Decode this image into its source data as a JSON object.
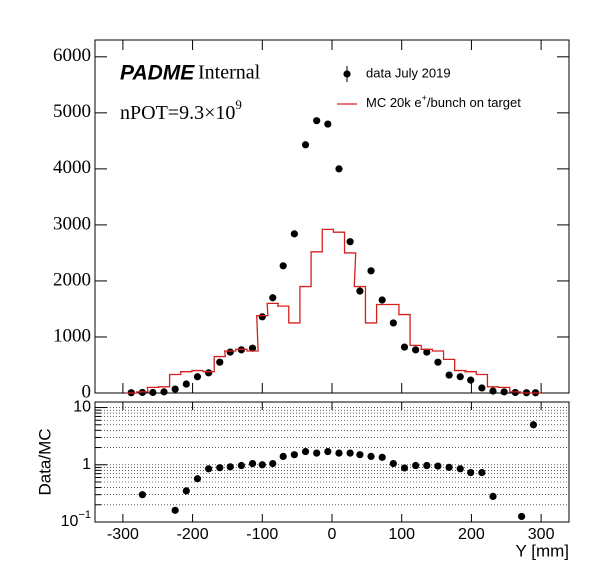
{
  "chart_data": [
    {
      "type": "histogram",
      "annotations": [
        {
          "text": "PADME"
        },
        {
          "text": "Internal"
        },
        {
          "text": "nPOT=9.3×10",
          "sup": "9"
        }
      ],
      "x": [
        -288,
        -272,
        -257,
        -241,
        -225,
        -209,
        -193,
        -177,
        -161,
        -146,
        -130,
        -114,
        -100,
        -85,
        -70,
        -54,
        -38,
        -22,
        -6,
        10,
        26,
        40,
        56,
        72,
        88,
        104,
        120,
        136,
        152,
        168,
        184,
        199,
        215,
        231,
        247,
        263,
        279,
        292
      ],
      "series": [
        {
          "name": "data July 2019",
          "color": "#000000",
          "style": "points",
          "values": [
            5,
            10,
            10,
            20,
            70,
            160,
            290,
            360,
            550,
            730,
            770,
            800,
            1360,
            1700,
            2270,
            2840,
            4430,
            4860,
            4800,
            4000,
            2700,
            1820,
            2180,
            1660,
            1250,
            820,
            770,
            730,
            550,
            320,
            290,
            230,
            90,
            35,
            20,
            10,
            5,
            5
          ]
        },
        {
          "name": "MC 20k e+/bunch on target",
          "color": "#d62020",
          "style": "step",
          "values": [
            0,
            20,
            100,
            110,
            330,
            380,
            400,
            380,
            650,
            750,
            780,
            750,
            1380,
            1600,
            1550,
            1250,
            1900,
            2520,
            2920,
            2870,
            2500,
            1900,
            1250,
            1580,
            1580,
            1400,
            850,
            780,
            750,
            600,
            400,
            380,
            330,
            110,
            100,
            20,
            0,
            0
          ]
        }
      ],
      "xlim": [
        -340,
        340
      ],
      "ylim": [
        0,
        6300
      ],
      "yticks": [
        0,
        1000,
        2000,
        3000,
        4000,
        5000,
        6000
      ]
    },
    {
      "type": "scatter",
      "y_label": "Data/MC",
      "x_label": "Y [mm]",
      "x": [
        -272,
        -225,
        -209,
        -193,
        -177,
        -161,
        -146,
        -130,
        -114,
        -100,
        -85,
        -70,
        -54,
        -38,
        -22,
        -6,
        10,
        26,
        40,
        56,
        72,
        88,
        104,
        120,
        136,
        152,
        168,
        184,
        199,
        215,
        231,
        272,
        289
      ],
      "values": [
        0.3,
        0.16,
        0.35,
        0.57,
        0.85,
        0.89,
        0.92,
        0.97,
        1.05,
        1.0,
        1.05,
        1.4,
        1.5,
        1.7,
        1.6,
        1.7,
        1.6,
        1.6,
        1.5,
        1.4,
        1.35,
        1.05,
        0.88,
        0.97,
        0.97,
        0.95,
        0.9,
        0.85,
        0.73,
        0.73,
        0.28,
        0.125,
        5.0
      ],
      "color": "#000000",
      "log_y": true,
      "grid": true,
      "xlim": [
        -340,
        340
      ],
      "ylim": [
        0.1,
        12.5
      ],
      "xticks": [
        -300,
        -200,
        -100,
        0,
        100,
        200,
        300
      ],
      "yticks": [
        {
          "value": 0.1,
          "label": "10",
          "sup": "−1"
        },
        1,
        10
      ]
    }
  ]
}
